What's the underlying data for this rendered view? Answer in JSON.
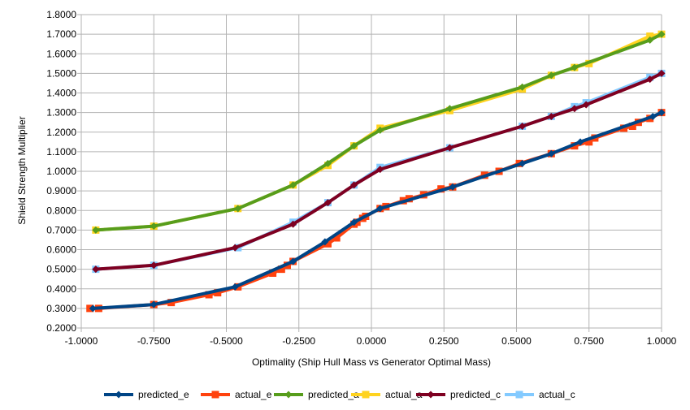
{
  "chart_data": {
    "type": "line",
    "title": "",
    "xlabel": "Optimality (Ship Hull Mass vs Generator Optimal Mass)",
    "ylabel": "Shield Strength Multiplier",
    "xlim": [
      -1.0,
      1.0
    ],
    "ylim": [
      0.2,
      1.8
    ],
    "xticks": [
      -1.0,
      -0.75,
      -0.5,
      -0.25,
      0.0,
      0.25,
      0.5,
      0.75,
      1.0
    ],
    "xtick_labels": [
      "-1.0000",
      "-0.7500",
      "-0.5000",
      "-0.2500",
      "0.0000",
      "0.2500",
      "0.5000",
      "0.7500",
      "1.0000"
    ],
    "yticks": [
      0.2,
      0.3,
      0.4,
      0.5,
      0.6,
      0.7,
      0.8,
      0.9,
      1.0,
      1.1,
      1.2,
      1.3,
      1.4,
      1.5,
      1.6,
      1.7,
      1.8
    ],
    "ytick_labels": [
      "0.2000",
      "0.3000",
      "0.4000",
      "0.5000",
      "0.6000",
      "0.7000",
      "0.8000",
      "0.9000",
      "1.0000",
      "1.1000",
      "1.2000",
      "1.3000",
      "1.4000",
      "1.5000",
      "1.6000",
      "1.7000",
      "1.8000"
    ],
    "grid": true,
    "legend": "bottom",
    "series": [
      {
        "name": "predicted_e",
        "color": "#004586",
        "marker": "diamond",
        "z": 5,
        "x": [
          -0.96,
          -0.75,
          -0.47,
          -0.27,
          -0.16,
          -0.06,
          0.03,
          0.28,
          0.52,
          0.62,
          0.72,
          0.97,
          1.0
        ],
        "y": [
          0.3,
          0.32,
          0.41,
          0.54,
          0.64,
          0.74,
          0.81,
          0.92,
          1.04,
          1.09,
          1.15,
          1.28,
          1.3
        ]
      },
      {
        "name": "actual_e",
        "color": "#ff420e",
        "marker": "square",
        "z": 4,
        "x": [
          -0.97,
          -0.94,
          -0.75,
          -0.69,
          -0.56,
          -0.53,
          -0.46,
          -0.34,
          -0.31,
          -0.29,
          -0.27,
          -0.15,
          -0.12,
          -0.06,
          -0.05,
          -0.03,
          -0.02,
          0.03,
          0.05,
          0.11,
          0.13,
          0.18,
          0.24,
          0.28,
          0.39,
          0.44,
          0.51,
          0.62,
          0.7,
          0.75,
          0.77,
          0.87,
          0.9,
          0.92,
          0.96,
          1.0
        ],
        "y": [
          0.3,
          0.3,
          0.32,
          0.33,
          0.37,
          0.38,
          0.41,
          0.48,
          0.5,
          0.52,
          0.54,
          0.63,
          0.66,
          0.73,
          0.74,
          0.76,
          0.77,
          0.81,
          0.82,
          0.85,
          0.86,
          0.88,
          0.91,
          0.92,
          0.98,
          1.0,
          1.04,
          1.09,
          1.13,
          1.15,
          1.17,
          1.22,
          1.23,
          1.25,
          1.27,
          1.3
        ]
      },
      {
        "name": "predicted_a",
        "color": "#579d1c",
        "marker": "diamond",
        "z": 3,
        "x": [
          -0.95,
          -0.75,
          -0.46,
          -0.27,
          -0.15,
          -0.06,
          0.03,
          0.27,
          0.52,
          0.62,
          0.7,
          0.96,
          1.0
        ],
        "y": [
          0.7,
          0.72,
          0.81,
          0.93,
          1.04,
          1.13,
          1.21,
          1.32,
          1.43,
          1.49,
          1.53,
          1.67,
          1.7
        ]
      },
      {
        "name": "actual_a",
        "color": "#ffd320",
        "marker": "square",
        "z": 2,
        "x": [
          -0.95,
          -0.75,
          -0.46,
          -0.27,
          -0.15,
          -0.06,
          0.03,
          0.27,
          0.52,
          0.62,
          0.7,
          0.75,
          0.96,
          1.0
        ],
        "y": [
          0.7,
          0.72,
          0.81,
          0.93,
          1.03,
          1.13,
          1.22,
          1.31,
          1.42,
          1.49,
          1.53,
          1.55,
          1.69,
          1.7
        ]
      },
      {
        "name": "predicted_c",
        "color": "#7e0021",
        "marker": "diamond",
        "z": 6,
        "x": [
          -0.95,
          -0.75,
          -0.47,
          -0.27,
          -0.15,
          -0.06,
          0.03,
          0.27,
          0.52,
          0.62,
          0.7,
          0.74,
          0.96,
          1.0
        ],
        "y": [
          0.5,
          0.52,
          0.61,
          0.73,
          0.84,
          0.93,
          1.01,
          1.12,
          1.23,
          1.28,
          1.32,
          1.34,
          1.47,
          1.5
        ]
      },
      {
        "name": "actual_c",
        "color": "#83caff",
        "marker": "square",
        "z": 1,
        "x": [
          -0.95,
          -0.75,
          -0.46,
          -0.27,
          -0.15,
          -0.06,
          0.03,
          0.27,
          0.52,
          0.62,
          0.7,
          0.74,
          0.96,
          1.0
        ],
        "y": [
          0.5,
          0.52,
          0.61,
          0.74,
          0.84,
          0.93,
          1.02,
          1.12,
          1.23,
          1.28,
          1.33,
          1.35,
          1.48,
          1.5
        ]
      }
    ]
  }
}
